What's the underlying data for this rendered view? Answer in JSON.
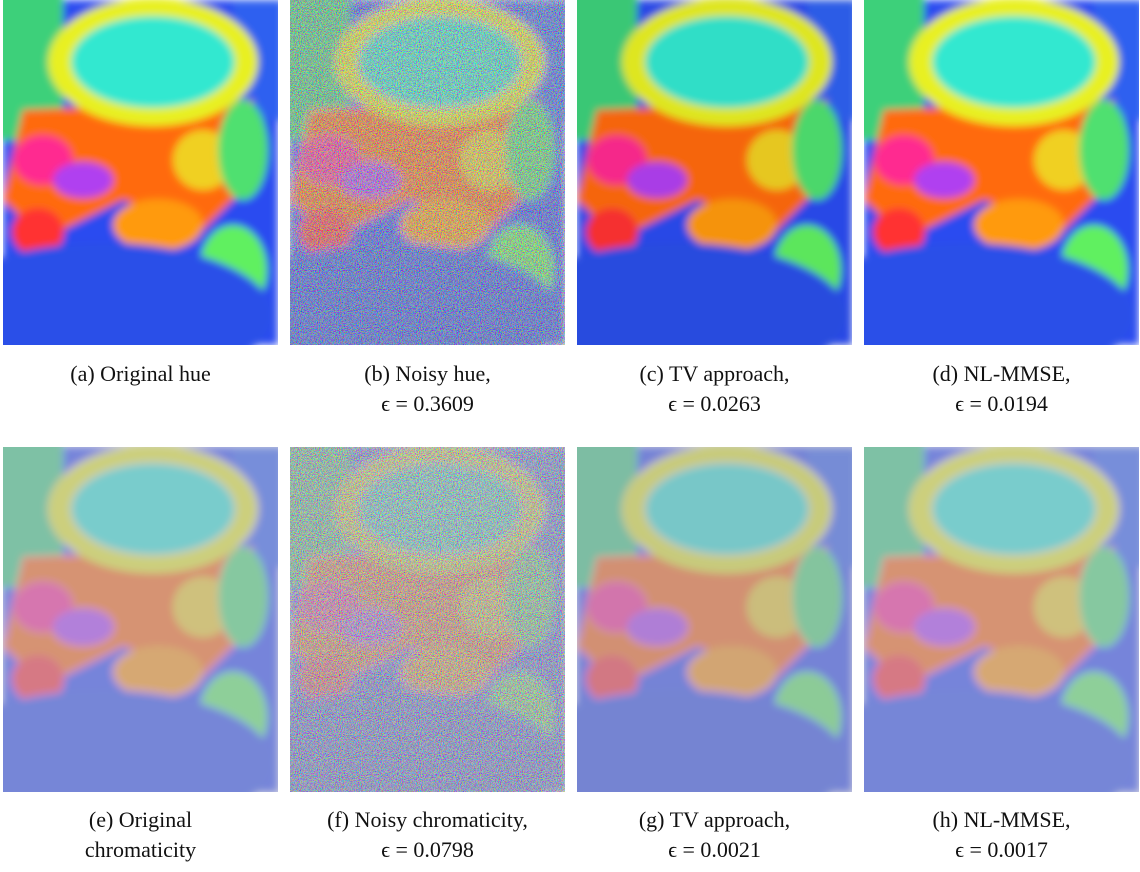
{
  "figure": {
    "panels": [
      {
        "lines": [
          "(a) Original hue"
        ]
      },
      {
        "lines": [
          "(b) Noisy hue,",
          "ϵ = 0.3609"
        ]
      },
      {
        "lines": [
          "(c) TV approach,",
          "ϵ = 0.0263"
        ]
      },
      {
        "lines": [
          "(d) NL-MMSE,",
          "ϵ = 0.0194"
        ]
      },
      {
        "lines": [
          "(e) Original",
          "chromaticity"
        ]
      },
      {
        "lines": [
          "(f) Noisy chromaticity,",
          "ϵ = 0.0798"
        ]
      },
      {
        "lines": [
          "(g) TV approach,",
          "ϵ = 0.0021"
        ]
      },
      {
        "lines": [
          "(h) NL-MMSE,",
          "ϵ = 0.0017"
        ]
      }
    ]
  }
}
